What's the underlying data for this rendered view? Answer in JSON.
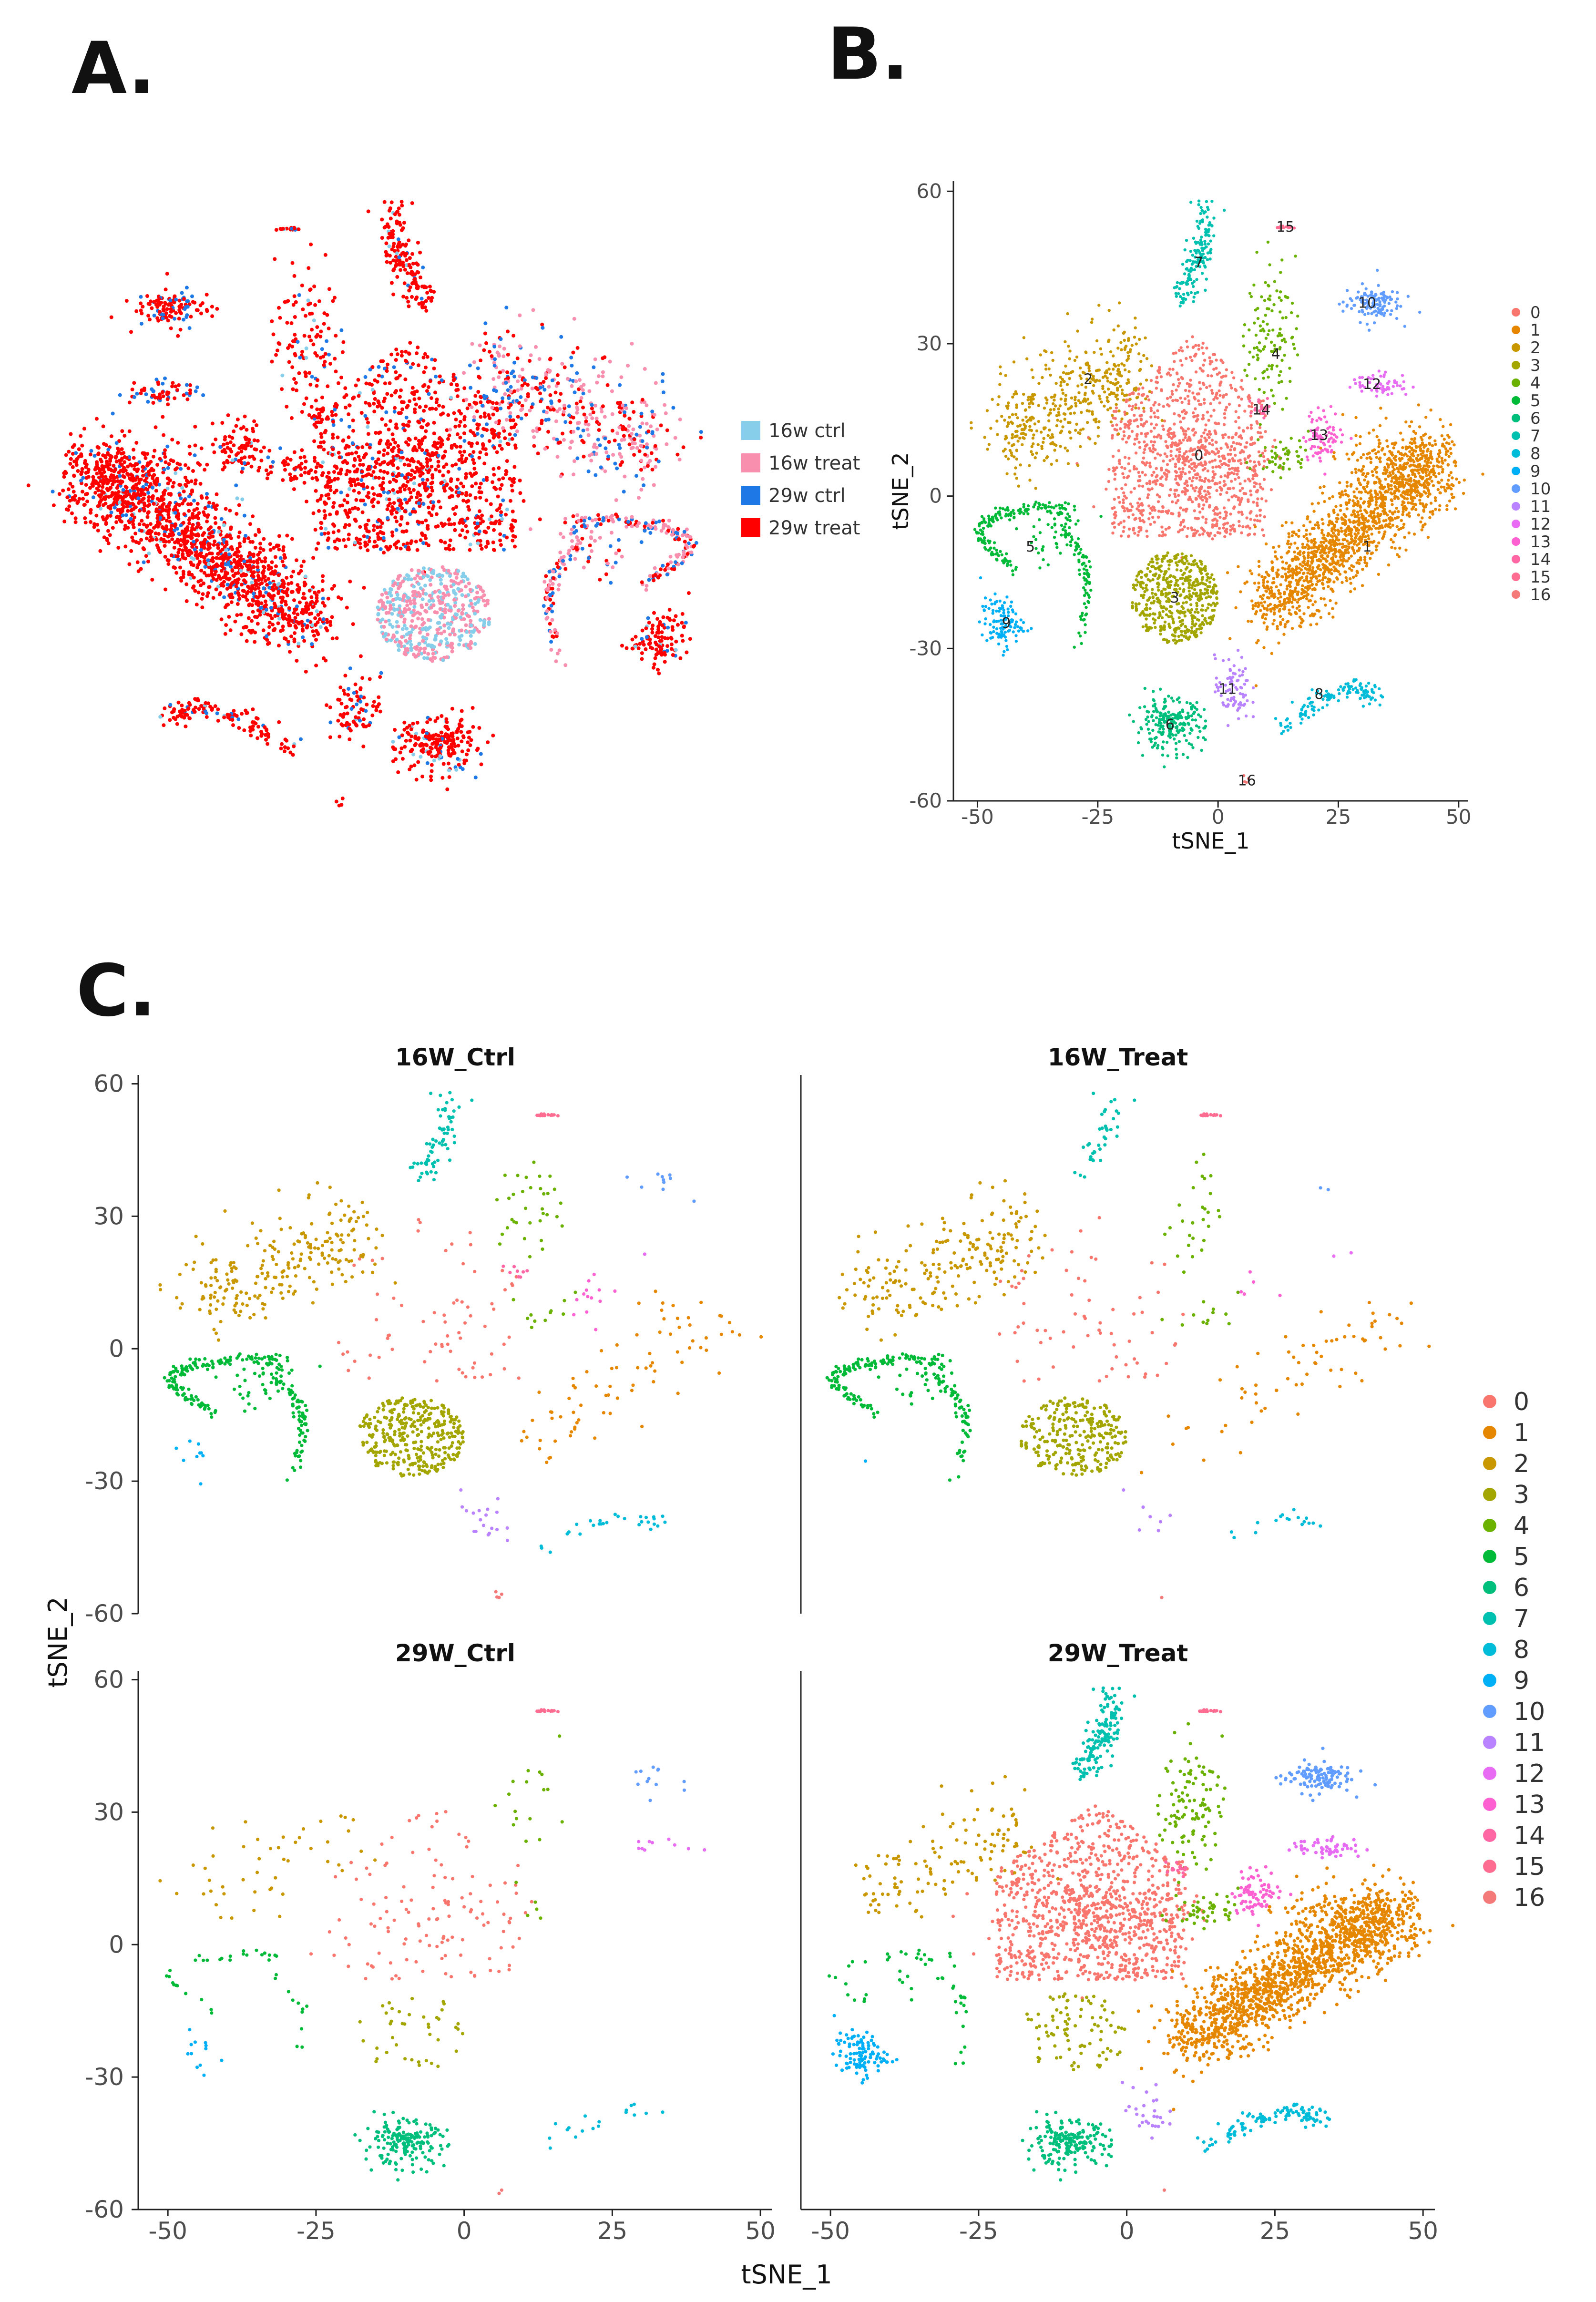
{
  "panels": {
    "a": {
      "letter": "A."
    },
    "b": {
      "letter": "B."
    },
    "c": {
      "letter": "C."
    }
  },
  "colors": {
    "clusters": [
      "#F8766D",
      "#E58700",
      "#C99800",
      "#A3A500",
      "#6BB100",
      "#00BA38",
      "#00BF7D",
      "#00C0AF",
      "#00BCD8",
      "#00B0F6",
      "#619CFF",
      "#B983FF",
      "#E76BF3",
      "#FD61D1",
      "#FF67A4",
      "#FF6C91",
      "#F47A7A"
    ],
    "groups": [
      "#87CEEB",
      "#F88FAF",
      "#1E78E6",
      "#FF0000"
    ]
  },
  "chart_data": [
    {
      "id": "A",
      "type": "scatter",
      "title": "",
      "xlabel": "",
      "ylabel": "",
      "axes_visible": false,
      "legend": {
        "position": "right",
        "entries": [
          "16w ctrl",
          "16w treat",
          "29w ctrl",
          "29w treat"
        ]
      },
      "groups": [
        "16w ctrl",
        "16w treat",
        "29w ctrl",
        "29w treat"
      ]
    },
    {
      "id": "B",
      "type": "scatter",
      "title": "",
      "xlabel": "tSNE_1",
      "ylabel": "tSNE_2",
      "xlim": [
        -55,
        52
      ],
      "ylim": [
        -60,
        62
      ],
      "xticks": [
        -50,
        -25,
        0,
        25,
        50
      ],
      "xtick_labels": [
        "-50",
        "-25",
        "0",
        "25",
        "50"
      ],
      "yticks": [
        60,
        30,
        0,
        -30,
        -60
      ],
      "ytick_labels": [
        "60",
        "30",
        "0",
        "-30",
        "-60"
      ],
      "legend": {
        "position": "right",
        "entries": [
          "0",
          "1",
          "2",
          "3",
          "4",
          "5",
          "6",
          "7",
          "8",
          "9",
          "10",
          "11",
          "12",
          "13",
          "14",
          "15",
          "16"
        ]
      },
      "clusters": [
        {
          "id": "0",
          "center": [
            -4,
            8
          ]
        },
        {
          "id": "1",
          "center": [
            31,
            -10
          ]
        },
        {
          "id": "2",
          "center": [
            -27,
            23
          ]
        },
        {
          "id": "3",
          "center": [
            -9,
            -20
          ]
        },
        {
          "id": "4",
          "center": [
            12,
            28
          ]
        },
        {
          "id": "5",
          "center": [
            -39,
            -10
          ]
        },
        {
          "id": "6",
          "center": [
            -10,
            -45
          ]
        },
        {
          "id": "7",
          "center": [
            -4,
            46
          ]
        },
        {
          "id": "8",
          "center": [
            21,
            -39
          ]
        },
        {
          "id": "9",
          "center": [
            -44,
            -25
          ]
        },
        {
          "id": "10",
          "center": [
            31,
            38
          ]
        },
        {
          "id": "11",
          "center": [
            2,
            -38
          ]
        },
        {
          "id": "12",
          "center": [
            32,
            22
          ]
        },
        {
          "id": "13",
          "center": [
            21,
            12
          ]
        },
        {
          "id": "14",
          "center": [
            9,
            17
          ]
        },
        {
          "id": "15",
          "center": [
            14,
            53
          ]
        },
        {
          "id": "16",
          "center": [
            6,
            -56
          ]
        }
      ]
    },
    {
      "id": "C",
      "type": "scatter",
      "xlabel": "tSNE_1",
      "ylabel": "tSNE_2",
      "xlim": [
        -55,
        52
      ],
      "ylim": [
        -60,
        62
      ],
      "xticks": [
        -50,
        -25,
        0,
        25,
        50
      ],
      "xtick_labels": [
        "-50",
        "-25",
        "0",
        "25",
        "50"
      ],
      "yticks": [
        60,
        30,
        0,
        -30,
        -60
      ],
      "ytick_labels": [
        "60",
        "30",
        "0",
        "-30",
        "-60"
      ],
      "facets": [
        "16W_Ctrl",
        "16W_Treat",
        "29W_Ctrl",
        "29W_Treat"
      ],
      "legend": {
        "position": "right",
        "entries": [
          "0",
          "1",
          "2",
          "3",
          "4",
          "5",
          "6",
          "7",
          "8",
          "9",
          "10",
          "11",
          "12",
          "13",
          "14",
          "15",
          "16"
        ]
      }
    }
  ]
}
